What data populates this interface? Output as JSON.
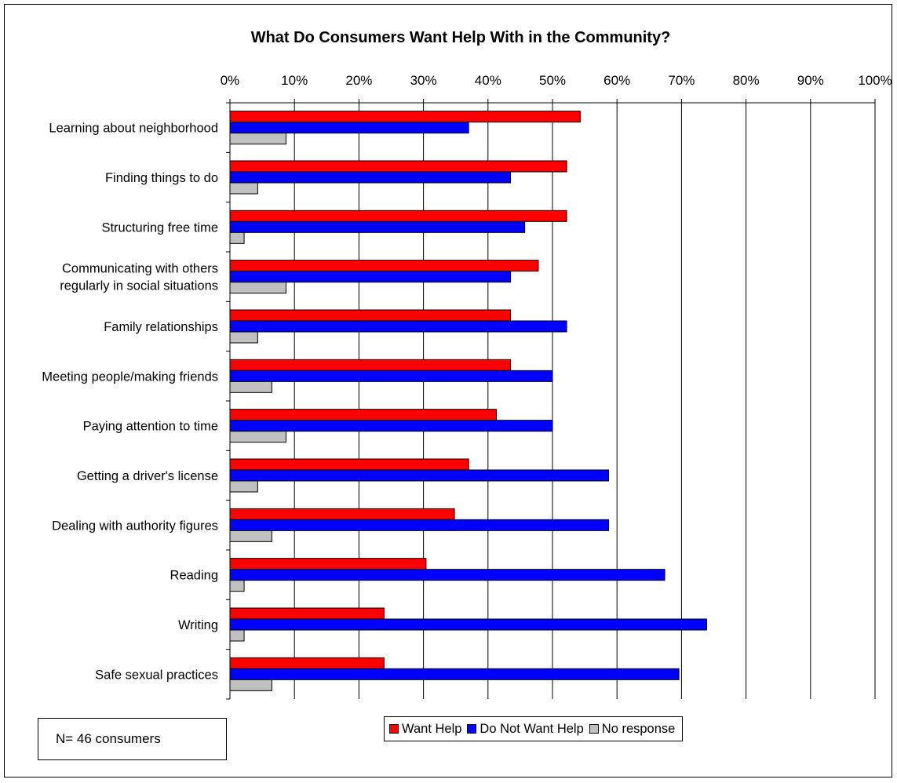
{
  "chart_data": {
    "type": "bar",
    "orientation": "horizontal",
    "title": "What Do Consumers Want Help With in the Community?",
    "xlabel": "",
    "ylabel": "",
    "xlim": [
      0,
      100
    ],
    "x_ticks": [
      "0%",
      "10%",
      "20%",
      "30%",
      "40%",
      "50%",
      "60%",
      "70%",
      "80%",
      "90%",
      "100%"
    ],
    "grid": "vertical",
    "legend_position": "bottom",
    "categories": [
      [
        "Learning about neighborhood"
      ],
      [
        "Finding things to do"
      ],
      [
        "Structuring free time"
      ],
      [
        "Communicating with others",
        "regularly in social situations"
      ],
      [
        "Family relationships"
      ],
      [
        "Meeting people/making friends"
      ],
      [
        "Paying attention to time"
      ],
      [
        "Getting a driver's license"
      ],
      [
        "Dealing with authority figures"
      ],
      [
        "Reading"
      ],
      [
        "Writing"
      ],
      [
        "Safe sexual practices"
      ]
    ],
    "series": [
      {
        "name": "Want Help",
        "color": "#ff0000",
        "values": [
          54.3,
          52.2,
          52.2,
          47.8,
          43.5,
          43.5,
          41.3,
          37.0,
          34.8,
          30.4,
          23.9,
          23.9
        ]
      },
      {
        "name": "Do Not Want Help",
        "color": "#0000ff",
        "values": [
          37.0,
          43.5,
          45.7,
          43.5,
          52.2,
          50.0,
          50.0,
          58.7,
          58.7,
          67.4,
          73.9,
          69.6
        ]
      },
      {
        "name": "No response",
        "color": "#c0c0c0",
        "values": [
          8.7,
          4.3,
          2.2,
          8.7,
          4.3,
          6.5,
          8.7,
          4.3,
          6.5,
          2.2,
          2.2,
          6.5
        ]
      }
    ]
  },
  "note": "N= 46 consumers"
}
